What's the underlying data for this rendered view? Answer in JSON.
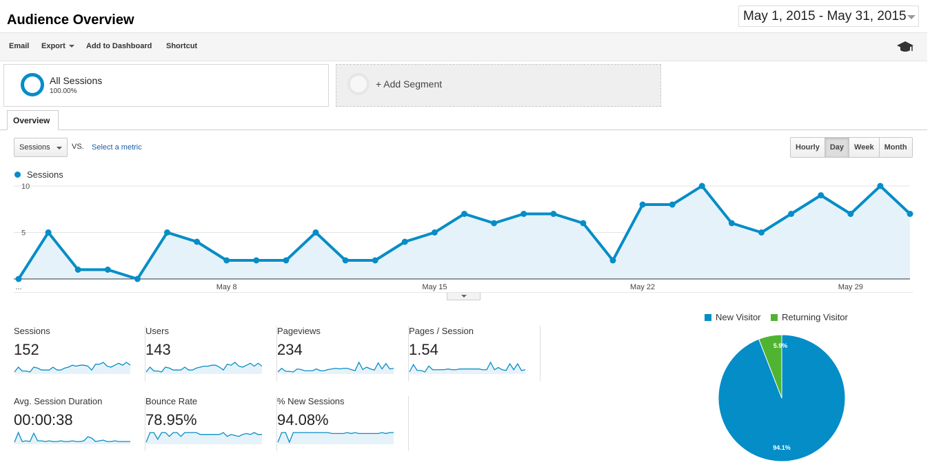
{
  "header": {
    "title": "Audience Overview",
    "date_range": "May 1, 2015 - May 31, 2015"
  },
  "toolbar": {
    "email": "Email",
    "export": "Export",
    "add_to_dashboard": "Add to Dashboard",
    "shortcut": "Shortcut"
  },
  "segments": {
    "all": {
      "name": "All Sessions",
      "percent": "100.00%"
    },
    "add": {
      "label": "+ Add Segment"
    }
  },
  "tabs": {
    "overview": "Overview"
  },
  "chart_controls": {
    "metric": "Sessions",
    "vs": "VS.",
    "select_metric": "Select a metric",
    "granularity": [
      "Hourly",
      "Day",
      "Week",
      "Month"
    ],
    "active_granularity": "Day"
  },
  "colors": {
    "accent": "#058dc7",
    "returning": "#50b432",
    "area_fill": "#e6f2f9"
  },
  "chart_data": [
    {
      "type": "area",
      "series": [
        {
          "name": "Sessions",
          "values": [
            0,
            5,
            1,
            1,
            0,
            5,
            4,
            2,
            2,
            2,
            5,
            2,
            2,
            4,
            5,
            7,
            6,
            7,
            7,
            6,
            2,
            8,
            8,
            10,
            6,
            5,
            7,
            9,
            7,
            10,
            7
          ]
        }
      ],
      "x": [
        1,
        2,
        3,
        4,
        5,
        6,
        7,
        8,
        9,
        10,
        11,
        12,
        13,
        14,
        15,
        16,
        17,
        18,
        19,
        20,
        21,
        22,
        23,
        24,
        25,
        26,
        27,
        28,
        29,
        30,
        31
      ],
      "x_tick_labels": [
        "...",
        "May 8",
        "May 15",
        "May 22",
        "May 29"
      ],
      "x_tick_positions": [
        1,
        8,
        15,
        22,
        29
      ],
      "y_ticks": [
        "5",
        "10"
      ],
      "ylim": [
        0,
        10
      ],
      "grid": true
    },
    {
      "type": "pie",
      "categories": [
        "New Visitor",
        "Returning Visitor"
      ],
      "values": [
        94.1,
        5.9
      ],
      "labels": [
        "94.1%",
        "5.9%"
      ],
      "colors": [
        "#058dc7",
        "#50b432"
      ],
      "legend_position": "top"
    }
  ],
  "metrics": [
    {
      "label": "Sessions",
      "value": "152",
      "spark": [
        0,
        5,
        1,
        1,
        0,
        5,
        4,
        2,
        2,
        2,
        5,
        2,
        2,
        4,
        5,
        7,
        6,
        7,
        7,
        6,
        2,
        8,
        8,
        10,
        6,
        5,
        7,
        9,
        7,
        10,
        7
      ]
    },
    {
      "label": "Users",
      "value": "143",
      "spark": [
        0,
        5,
        1,
        1,
        0,
        5,
        4,
        2,
        2,
        2,
        5,
        2,
        2,
        4,
        5,
        6,
        6,
        7,
        7,
        5,
        2,
        8,
        7,
        10,
        6,
        5,
        7,
        9,
        6,
        9,
        6
      ]
    },
    {
      "label": "Pageviews",
      "value": "234",
      "spark": [
        0,
        6,
        1,
        1,
        0,
        5,
        4,
        2,
        2,
        2,
        5,
        2,
        2,
        4,
        5,
        6,
        5,
        6,
        6,
        4,
        2,
        16,
        4,
        8,
        5,
        3,
        15,
        5,
        14,
        5,
        6
      ]
    },
    {
      "label": "Pages / Session",
      "value": "1.54",
      "spark": [
        0,
        10,
        2,
        2,
        0,
        8,
        3,
        3,
        3,
        3,
        4,
        3,
        3,
        4,
        4,
        4,
        4,
        4,
        4,
        3,
        3,
        13,
        3,
        6,
        3,
        2,
        11,
        3,
        11,
        2,
        3
      ]
    },
    {
      "label": "Avg. Session Duration",
      "value": "00:00:38",
      "spark": [
        0,
        14,
        1,
        2,
        1,
        13,
        2,
        2,
        1,
        2,
        1,
        1,
        2,
        1,
        1,
        2,
        1,
        1,
        2,
        8,
        6,
        1,
        2,
        3,
        1,
        1,
        2,
        1,
        1,
        1,
        1
      ]
    },
    {
      "label": "Bounce Rate",
      "value": "78.95%",
      "spark": [
        0,
        10,
        10,
        3,
        10,
        10,
        6,
        10,
        10,
        6,
        10,
        10,
        10,
        10,
        8,
        8,
        8,
        8,
        8,
        8,
        10,
        6,
        8,
        7,
        6,
        8,
        9,
        8,
        10,
        8,
        8
      ]
    },
    {
      "label": "% New Sessions",
      "value": "94.08%",
      "spark": [
        0,
        10,
        10,
        0,
        10,
        10,
        10,
        10,
        10,
        10,
        10,
        10,
        10,
        10,
        9,
        9,
        9,
        9,
        10,
        9,
        10,
        9,
        9,
        9,
        9,
        9,
        9,
        10,
        9,
        10,
        10
      ]
    }
  ]
}
